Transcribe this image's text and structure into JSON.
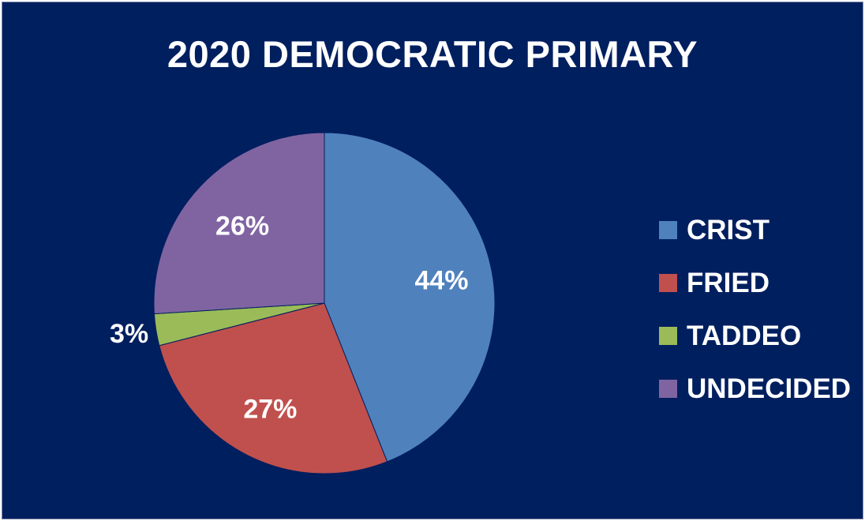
{
  "chart_data": {
    "type": "pie",
    "title": "2020 DEMOCRATIC PRIMARY",
    "categories": [
      "CRIST",
      "FRIED",
      "TADDEO",
      "UNDECIDED"
    ],
    "values": [
      44,
      27,
      3,
      26
    ],
    "labels": [
      "44%",
      "27%",
      "3%",
      "26%"
    ],
    "colors": [
      "#4f81bd",
      "#c0504d",
      "#9bbb59",
      "#8064a2"
    ],
    "legend_position": "right",
    "background": "#001f5f"
  }
}
